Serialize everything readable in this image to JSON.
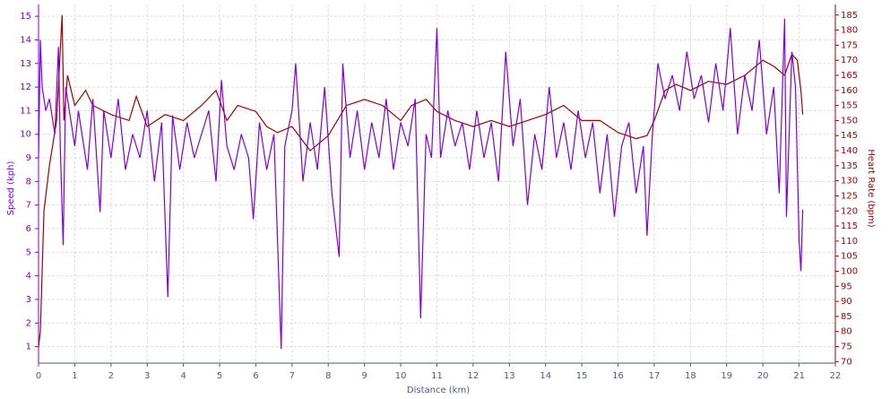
{
  "chart_data": {
    "type": "line",
    "xlabel": "Distance (km)",
    "ylabel": "Speed (kph)",
    "y2label": "Heart Rate (bpm)",
    "grid": true,
    "xlim": [
      0,
      22
    ],
    "xticks": [
      0,
      1,
      2,
      3,
      4,
      5,
      6,
      7,
      8,
      9,
      10,
      11,
      12,
      13,
      14,
      15,
      16,
      17,
      18,
      19,
      20,
      21,
      22
    ],
    "ylim": [
      0.3,
      15.5
    ],
    "yticks": [
      1,
      2,
      3,
      4,
      5,
      6,
      7,
      8,
      9,
      10,
      11,
      12,
      13,
      14,
      15
    ],
    "y2lim": [
      69.5,
      188.5
    ],
    "y2ticks": [
      70,
      75,
      80,
      85,
      90,
      95,
      100,
      105,
      110,
      115,
      120,
      125,
      130,
      135,
      140,
      145,
      150,
      155,
      160,
      165,
      170,
      175,
      180,
      185
    ],
    "series": [
      {
        "name": "Speed",
        "color": "#7f00d9",
        "axis": "y",
        "x": [
          0,
          0.05,
          0.1,
          0.2,
          0.3,
          0.45,
          0.55,
          0.6,
          0.68,
          0.75,
          0.9,
          1.0,
          1.1,
          1.2,
          1.35,
          1.5,
          1.7,
          1.8,
          2.0,
          2.2,
          2.4,
          2.6,
          2.8,
          3.0,
          3.2,
          3.4,
          3.57,
          3.7,
          3.9,
          4.1,
          4.3,
          4.5,
          4.7,
          4.9,
          5.05,
          5.2,
          5.4,
          5.6,
          5.8,
          5.93,
          6.1,
          6.3,
          6.5,
          6.7,
          6.8,
          7.0,
          7.1,
          7.3,
          7.5,
          7.7,
          7.9,
          8.1,
          8.3,
          8.4,
          8.6,
          8.8,
          9.0,
          9.2,
          9.4,
          9.6,
          9.8,
          10.0,
          10.2,
          10.4,
          10.55,
          10.7,
          10.85,
          11.0,
          11.1,
          11.3,
          11.5,
          11.7,
          11.9,
          12.1,
          12.3,
          12.5,
          12.7,
          12.9,
          13.1,
          13.3,
          13.5,
          13.7,
          13.9,
          14.1,
          14.3,
          14.5,
          14.7,
          14.9,
          15.1,
          15.3,
          15.5,
          15.7,
          15.9,
          16.1,
          16.3,
          16.5,
          16.7,
          16.8,
          16.95,
          17.1,
          17.3,
          17.5,
          17.7,
          17.9,
          18.1,
          18.3,
          18.5,
          18.7,
          18.9,
          19.1,
          19.3,
          19.5,
          19.7,
          19.9,
          20.1,
          20.3,
          20.45,
          20.6,
          20.65,
          20.8,
          20.9,
          21.0,
          21.05,
          21.1
        ],
        "values": [
          9,
          14,
          12,
          11,
          11.5,
          10,
          13.7,
          9.5,
          5.3,
          12,
          10.5,
          9.5,
          11,
          10,
          8.5,
          11.5,
          6.7,
          11,
          9,
          11.5,
          8.5,
          10,
          9,
          11,
          8,
          10.5,
          3.1,
          10.8,
          8.5,
          10.5,
          9,
          10,
          11,
          8,
          12.3,
          9.5,
          8.5,
          10,
          9,
          6.4,
          10.5,
          8.5,
          10,
          0.9,
          9.5,
          11,
          13,
          8,
          10.5,
          8.5,
          12,
          7.5,
          4.8,
          13,
          9,
          11,
          8.5,
          10.5,
          9,
          11.5,
          8.5,
          10.5,
          9.5,
          11.5,
          2.2,
          10,
          9,
          14.5,
          9,
          11,
          9.5,
          10.5,
          8.5,
          11,
          9,
          10.5,
          8,
          13.5,
          9.5,
          11.5,
          7,
          10,
          8.5,
          12,
          9,
          10.5,
          8.5,
          11,
          9,
          10.5,
          7.5,
          10,
          6.5,
          9.5,
          10.5,
          7.5,
          9.5,
          5.7,
          10,
          13,
          11.5,
          12.5,
          11,
          13.5,
          11.5,
          12.5,
          10.5,
          13,
          11,
          14.5,
          10,
          12.5,
          11,
          14,
          10,
          12,
          7.5,
          14.9,
          6.5,
          13.5,
          12,
          5.5,
          4.2,
          6.8
        ]
      },
      {
        "name": "Heart Rate",
        "color": "#a50000",
        "axis": "y2",
        "x": [
          0,
          0.05,
          0.15,
          0.3,
          0.5,
          0.65,
          0.7,
          0.8,
          0.9,
          1.0,
          1.3,
          1.5,
          2,
          2.5,
          2.7,
          3,
          3.5,
          4,
          4.5,
          4.9,
          5.2,
          5.5,
          6,
          6.3,
          6.6,
          7,
          7.5,
          8,
          8.5,
          9,
          9.5,
          10,
          10.3,
          10.7,
          11,
          11.5,
          12,
          12.5,
          13,
          13.5,
          14,
          14.5,
          15,
          15.5,
          16,
          16.5,
          16.8,
          17,
          17.3,
          17.6,
          18,
          18.5,
          19,
          19.5,
          20,
          20.3,
          20.6,
          20.8,
          20.95,
          21.05,
          21.1
        ],
        "values": [
          75,
          80,
          120,
          135,
          150,
          185,
          150,
          165,
          160,
          155,
          160,
          155,
          152,
          150,
          158,
          148,
          152,
          150,
          155,
          160,
          150,
          155,
          153,
          148,
          146,
          148,
          140,
          145,
          155,
          157,
          155,
          150,
          155,
          157,
          153,
          150,
          148,
          150,
          148,
          150,
          152,
          155,
          150,
          150,
          146,
          144,
          145,
          150,
          160,
          162,
          160,
          163,
          162,
          165,
          170,
          168,
          165,
          172,
          170,
          160,
          152
        ]
      }
    ]
  }
}
